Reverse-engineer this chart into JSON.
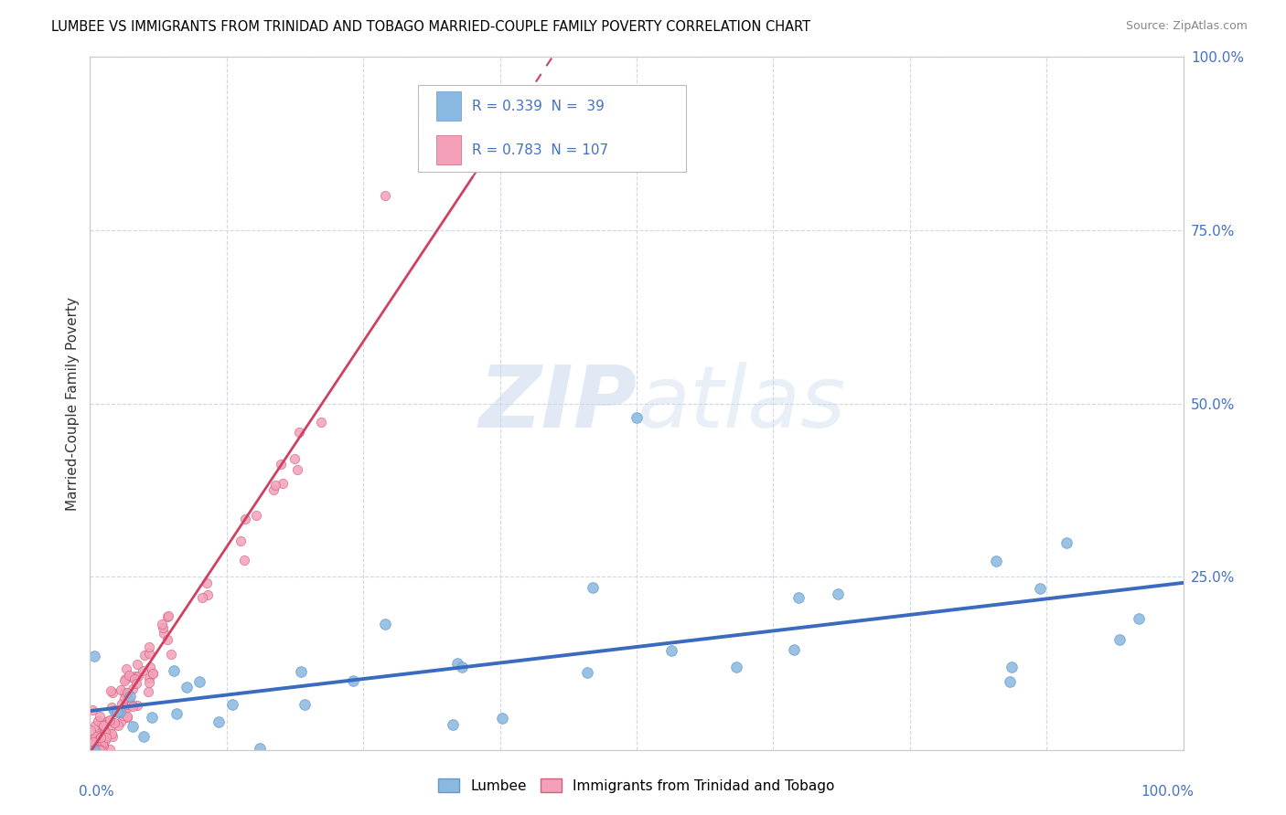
{
  "title": "LUMBEE VS IMMIGRANTS FROM TRINIDAD AND TOBAGO MARRIED-COUPLE FAMILY POVERTY CORRELATION CHART",
  "source": "Source: ZipAtlas.com",
  "ylabel": "Married-Couple Family Poverty",
  "lumbee_color": "#89b8e0",
  "lumbee_edge": "#6698c8",
  "tt_color": "#f4a0b8",
  "tt_edge": "#d06080",
  "trendline_lumbee_color": "#3a6bbf",
  "trendline_tt_color": "#d04060",
  "watermark_zip": "ZIP",
  "watermark_atlas": "atlas",
  "watermark_color_zip": "#c5d5e8",
  "watermark_color_atlas": "#c5d5e8",
  "grid_color": "#d0d8e8",
  "legend_box_color": "#eeeeee",
  "R_lumbee": 0.339,
  "N_lumbee": 39,
  "R_tt": 0.783,
  "N_tt": 107
}
